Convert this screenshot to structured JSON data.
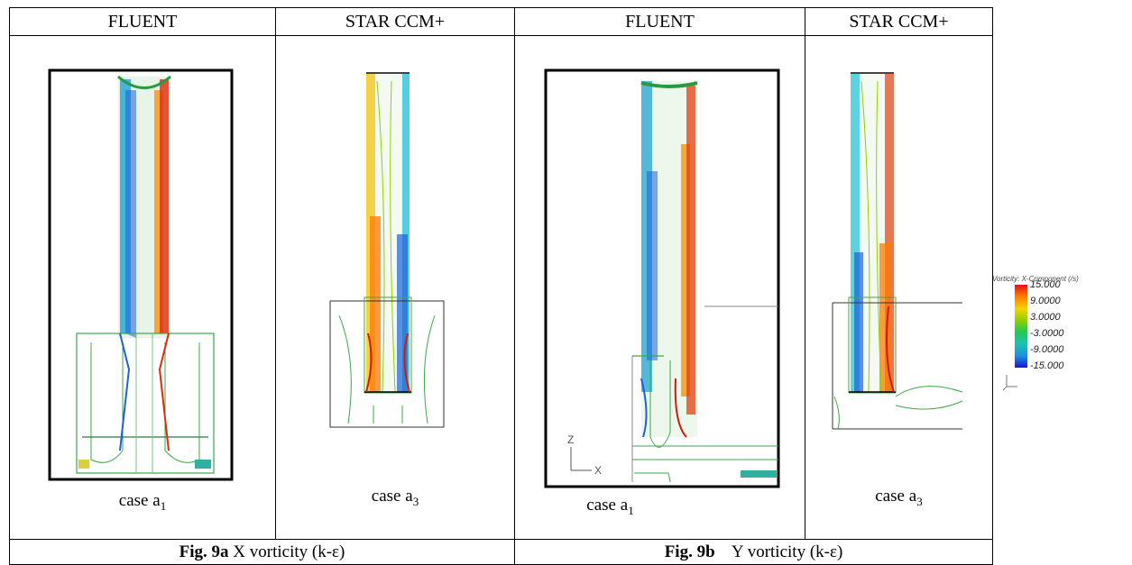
{
  "headers": [
    "FLUENT",
    "STAR  CCM+",
    "FLUENT",
    "STAR  CCM+"
  ],
  "panels": [
    {
      "case_main": "case a",
      "case_sub": "1"
    },
    {
      "case_main": "case a",
      "case_sub": "3"
    },
    {
      "case_main": "case a",
      "case_sub": "1"
    },
    {
      "case_main": "case a",
      "case_sub": "3"
    }
  ],
  "captions": {
    "fig9a_bold": "Fig. 9a",
    "fig9a_text": " X vorticity (k-ε)",
    "fig9b_bold": "Fig. 9b",
    "fig9b_text": "    Y vorticity (k-ε)"
  },
  "legend": {
    "title": "Vorticity: X-Component (/s)",
    "labels": [
      "15.000",
      "9.0000",
      "3.0000",
      "-3.0000",
      "-9.0000",
      "-15.000"
    ],
    "colors": [
      "#e0101a",
      "#ff7a00",
      "#f2d400",
      "#8fd000",
      "#22c855",
      "#1ec2b0",
      "#1e8de0",
      "#1818d0"
    ]
  },
  "axis_labels": {
    "z": "Z",
    "x": "X"
  }
}
